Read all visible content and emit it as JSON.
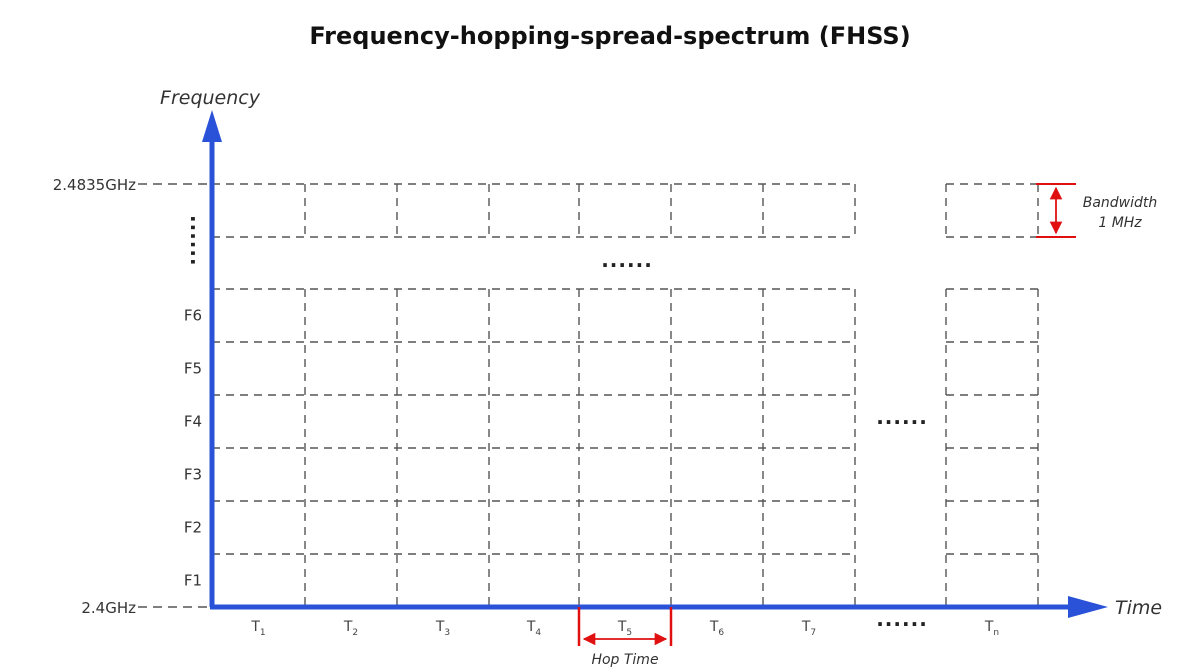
{
  "title": "Frequency-hopping-spread-spectrum (FHSS)",
  "y_axis_label": "Frequency",
  "x_axis_label": "Time",
  "freq_top_label": "2.4835GHz",
  "freq_bottom_label": "2.4GHz",
  "channels": [
    "F1",
    "F2",
    "F3",
    "F4",
    "F5",
    "F6"
  ],
  "time_slots": [
    {
      "base": "T",
      "sub": "1"
    },
    {
      "base": "T",
      "sub": "2"
    },
    {
      "base": "T",
      "sub": "3"
    },
    {
      "base": "T",
      "sub": "4"
    },
    {
      "base": "T",
      "sub": "5"
    },
    {
      "base": "T",
      "sub": "6"
    },
    {
      "base": "T",
      "sub": "7"
    },
    {
      "base": "T",
      "sub": "n"
    }
  ],
  "ellipsis": "......",
  "vertical_ellipsis": "......",
  "bandwidth_label": "Bandwidth",
  "bandwidth_value": "1 MHz",
  "hop_time_label": "Hop Time",
  "colors": {
    "axis": "#2a52d8",
    "grid": "#555555",
    "annotation": "#e01010"
  }
}
